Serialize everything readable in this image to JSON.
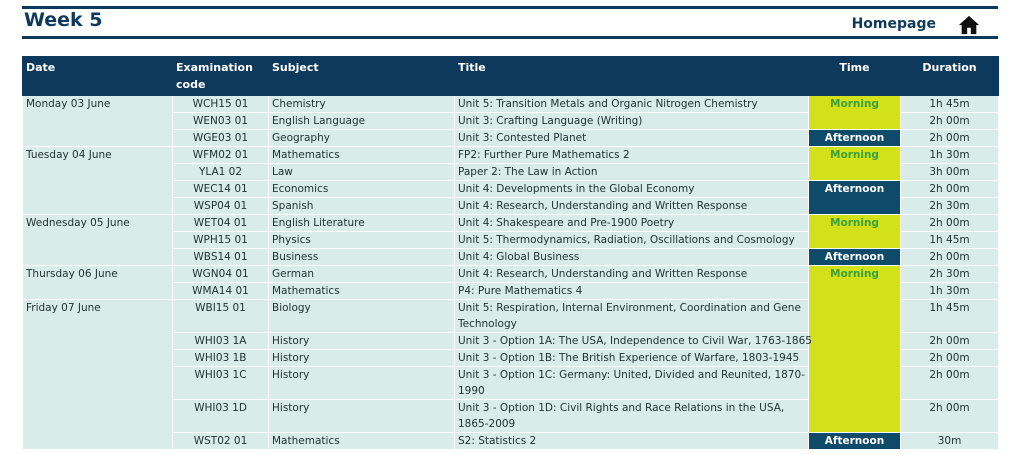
{
  "header": {
    "title": "Week 5",
    "homepage_label": "Homepage",
    "home_icon": "home-icon"
  },
  "columns": {
    "date": "Date",
    "code": "Examination code",
    "subject": "Subject",
    "title": "Title",
    "time": "Time",
    "duration": "Duration"
  },
  "rows": [
    {
      "date": "Monday 03 June",
      "code": "WCH15 01",
      "subject": "Chemistry",
      "title": "Unit 5: Transition Metals and Organic Nitrogen Chemistry",
      "time": "Morning",
      "duration": "1h 45m"
    },
    {
      "date": "",
      "code": "WEN03 01",
      "subject": "English Language",
      "title": "Unit 3: Crafting Language (Writing)",
      "time": "",
      "duration": "2h 00m"
    },
    {
      "date": "",
      "code": "WGE03 01",
      "subject": "Geography",
      "title": "Unit 3: Contested Planet",
      "time": "Afternoon",
      "duration": "2h 00m"
    },
    {
      "date": "Tuesday 04 June",
      "code": "WFM02 01",
      "subject": "Mathematics",
      "title": "FP2: Further Pure Mathematics 2",
      "time": "Morning",
      "duration": "1h 30m"
    },
    {
      "date": "",
      "code": "YLA1 02",
      "subject": "Law",
      "title": "Paper 2: The Law in Action",
      "time": "",
      "duration": "3h 00m"
    },
    {
      "date": "",
      "code": "WEC14 01",
      "subject": "Economics",
      "title": "Unit 4: Developments in the Global Economy",
      "time": "Afternoon",
      "duration": "2h 00m"
    },
    {
      "date": "",
      "code": "WSP04 01",
      "subject": "Spanish",
      "title": "Unit 4: Research, Understanding and Written Response",
      "time": "",
      "duration": "2h 30m"
    },
    {
      "date": "Wednesday 05 June",
      "code": "WET04 01",
      "subject": "English Literature",
      "title": "Unit 4: Shakespeare and Pre-1900 Poetry",
      "time": "Morning",
      "duration": "2h 00m"
    },
    {
      "date": "",
      "code": "WPH15 01",
      "subject": "Physics",
      "title": "Unit 5: Thermodynamics, Radiation, Oscillations and Cosmology",
      "time": "",
      "duration": "1h 45m"
    },
    {
      "date": "",
      "code": "WBS14 01",
      "subject": "Business",
      "title": "Unit 4: Global Business",
      "time": "Afternoon",
      "duration": "2h 00m"
    },
    {
      "date": "Thursday 06 June",
      "code": "WGN04 01",
      "subject": "German",
      "title": "Unit 4: Research, Understanding and Written Response",
      "time": "Morning",
      "duration": "2h 30m"
    },
    {
      "date": "",
      "code": "WMA14 01",
      "subject": "Mathematics",
      "title": "P4: Pure Mathematics 4",
      "time": "",
      "duration": "1h 30m"
    },
    {
      "date": "Friday 07 June",
      "code": "WBI15 01",
      "subject": "Biology",
      "title": "Unit 5: Respiration, Internal Environment, Coordination and Gene Technology",
      "time": "",
      "duration": "1h 45m"
    },
    {
      "date": "",
      "code": "WHI03 1A",
      "subject": "History",
      "title": "Unit 3 - Option 1A: The USA, Independence to Civil War, 1763-1865",
      "time": "",
      "duration": "2h 00m"
    },
    {
      "date": "",
      "code": "WHI03 1B",
      "subject": "History",
      "title": "Unit 3 - Option 1B: The British Experience of Warfare, 1803-1945",
      "time": "",
      "duration": "2h 00m"
    },
    {
      "date": "",
      "code": "WHI03 1C",
      "subject": "History",
      "title": "Unit 3 - Option 1C: Germany: United, Divided and Reunited, 1870-1990",
      "time": "",
      "duration": "2h 00m"
    },
    {
      "date": "",
      "code": "WHI03 1D",
      "subject": "History",
      "title": "Unit 3 - Option 1D: Civil Rights and Race Relations in the USA, 1865-2009",
      "time": "",
      "duration": "2h 00m"
    },
    {
      "date": "",
      "code": "WST02 01",
      "subject": "Mathematics",
      "title": "S2: Statistics 2",
      "time": "Afternoon",
      "duration": "30m"
    }
  ],
  "colors": {
    "header_bg": "#0d3a5c",
    "row_bg": "#d8ece9",
    "morning_bg": "#d3e118",
    "afternoon_bg": "#0e4a6a"
  }
}
